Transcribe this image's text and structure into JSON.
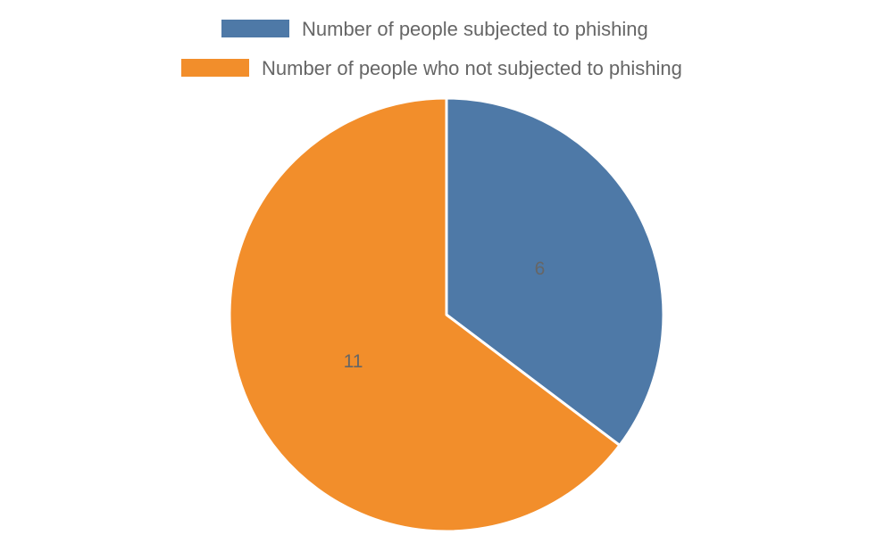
{
  "chart_data": {
    "type": "pie",
    "categories": [
      "Number of people subjected to phishing",
      "Number of people who not subjected to phishing"
    ],
    "values": [
      6,
      11
    ],
    "colors": [
      "#4e79a7",
      "#f28e2b"
    ],
    "title": "",
    "legend_position": "top",
    "data_labels": [
      "6",
      "11"
    ]
  }
}
